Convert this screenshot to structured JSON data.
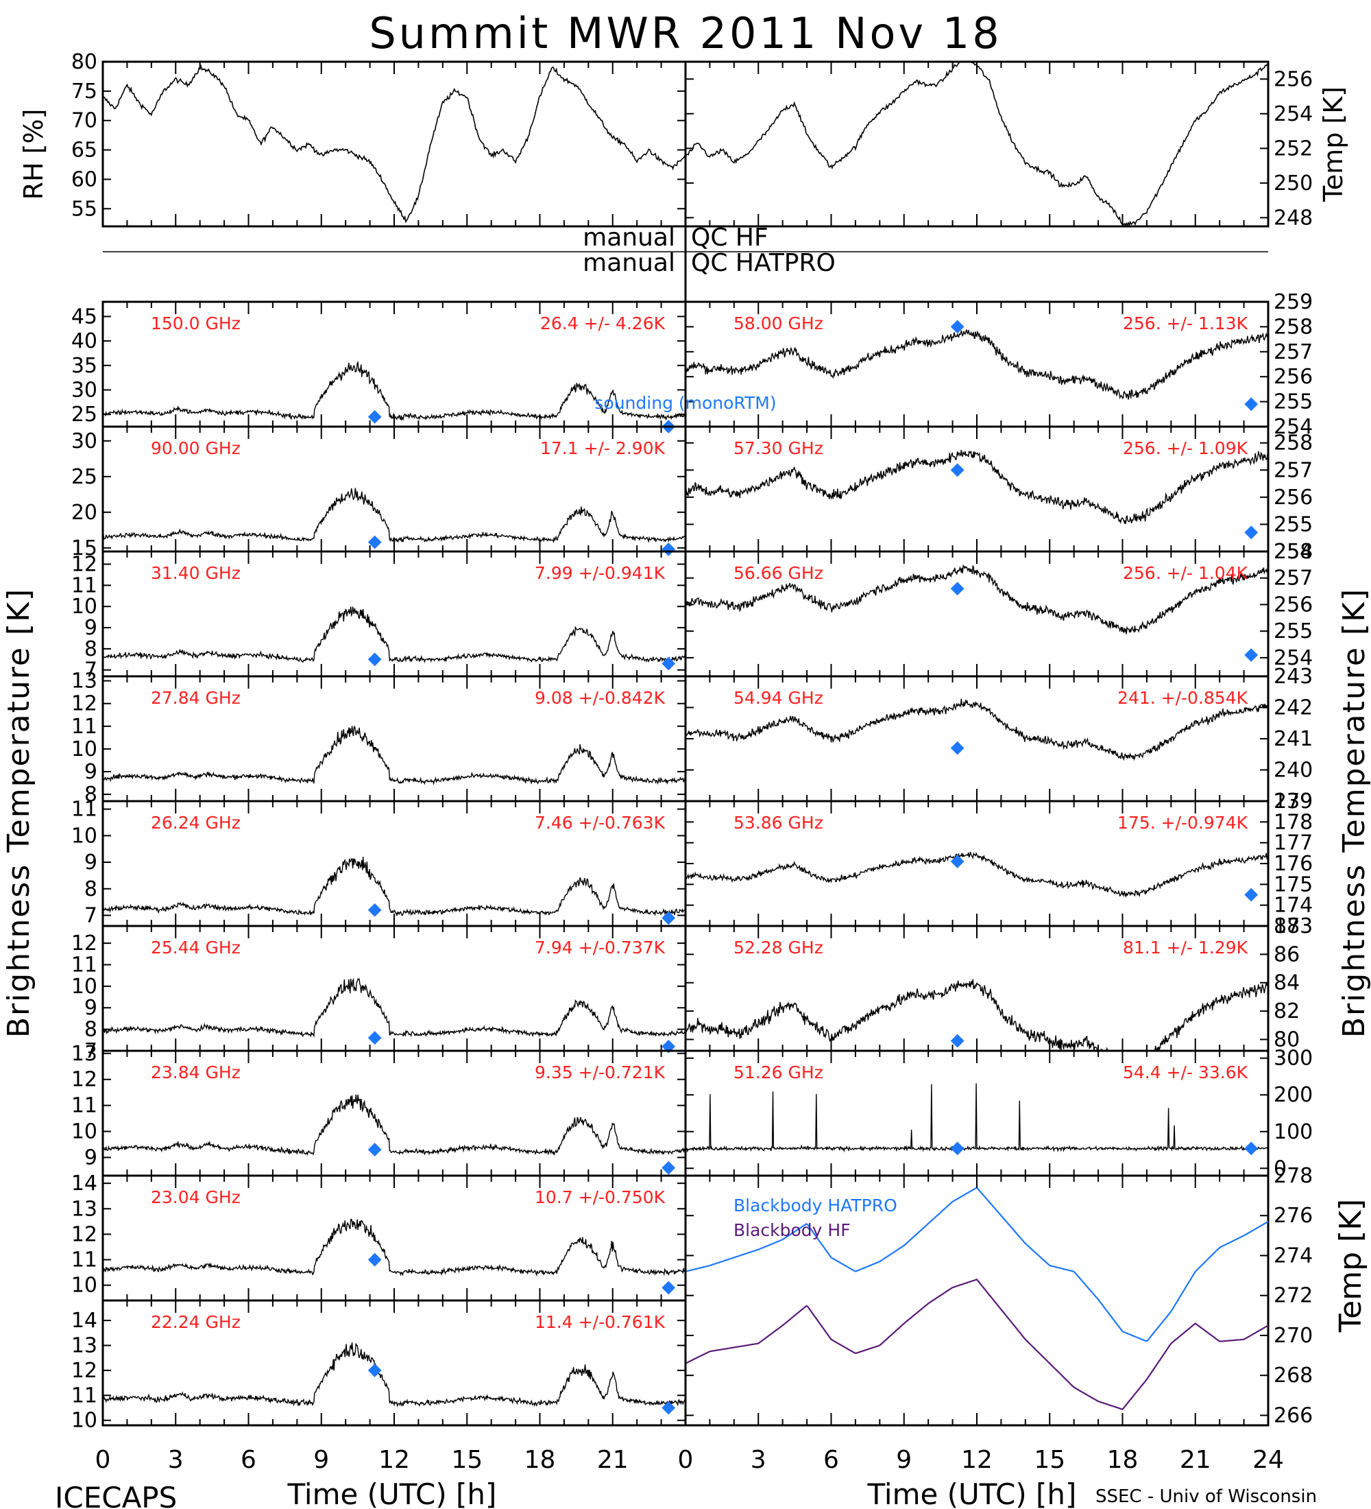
{
  "title": "Summit MWR 2011 Nov 18",
  "footer_left": "ICECAPS",
  "footer_right": "SSEC - Univ of Wisconsin",
  "qc_hf": {
    "left": "manual",
    "right": "QC HF"
  },
  "qc_hatpro": {
    "left": "manual",
    "right": "QC HATPRO"
  },
  "sounding_label": "sounding (monoRTM)",
  "left_ylabel": "Brightness Temperature [K]",
  "right_ylabel": "Brightness Temperature [K]",
  "xlabel_left": "Time (UTC) [h]",
  "xlabel_right": "Time (UTC) [h]",
  "rh_ylabel": "RH [%]",
  "temp_ylabel_top": "Temp [K]",
  "temp_ylabel_bb": "Temp [K]",
  "colors": {
    "line": "#000000",
    "annot": "#ff2020",
    "sounding": "#1e78ff",
    "hatpro": "#1e78ff",
    "hf": "#5a1a78"
  },
  "chart_data": {
    "type": "line",
    "x_left": {
      "label": "Time (UTC) [h]",
      "range": [
        0,
        24
      ],
      "ticks": [
        "0",
        "3",
        "6",
        "9",
        "12",
        "15",
        "18",
        "21"
      ]
    },
    "x_right": {
      "label": "Time (UTC) [h]",
      "range": [
        0,
        24
      ],
      "ticks": [
        "0",
        "3",
        "6",
        "9",
        "12",
        "15",
        "18",
        "21",
        "24"
      ]
    },
    "rh": {
      "ylabel": "RH [%]",
      "ylim": [
        52,
        80
      ],
      "ticks": [
        "55",
        "60",
        "65",
        "70",
        "75",
        "80"
      ],
      "t": [
        0,
        0.5,
        1,
        1.5,
        2,
        2.5,
        3,
        3.5,
        4,
        4.5,
        5,
        5.5,
        6,
        6.5,
        7,
        7.5,
        8,
        8.5,
        9,
        9.5,
        10,
        10.5,
        11,
        11.5,
        12,
        12.5,
        13,
        13.5,
        14,
        14.5,
        15,
        15.5,
        16,
        16.5,
        17,
        17.5,
        18,
        18.5,
        19,
        19.5,
        20,
        20.5,
        21,
        21.5,
        22,
        22.5,
        23,
        23.5,
        24
      ],
      "v": [
        74,
        72,
        76,
        73,
        71,
        75,
        77,
        76,
        79,
        78,
        76,
        71,
        70,
        66,
        69,
        67,
        65,
        66,
        64,
        65,
        65,
        64,
        63,
        60,
        56,
        53,
        57,
        66,
        73,
        75,
        74,
        67,
        64,
        65,
        63,
        67,
        74,
        79,
        77,
        76,
        73,
        70,
        67,
        66,
        63,
        65,
        63,
        62,
        64
      ]
    },
    "temp_top": {
      "ylabel": "Temp [K]",
      "ylim": [
        247.5,
        257
      ],
      "ticks": [
        "248",
        "250",
        "252",
        "254",
        "256"
      ],
      "t": [
        0,
        0.5,
        1,
        1.5,
        2,
        2.5,
        3,
        3.5,
        4,
        4.5,
        5,
        5.5,
        6,
        6.5,
        7,
        7.5,
        8,
        8.5,
        9,
        9.5,
        10,
        10.5,
        11,
        11.5,
        12,
        12.5,
        13,
        13.5,
        14,
        14.5,
        15,
        15.5,
        16,
        16.5,
        17,
        17.5,
        18,
        18.5,
        19,
        19.5,
        20,
        20.5,
        21,
        21.5,
        22,
        22.5,
        23,
        23.5,
        24
      ],
      "v": [
        251.5,
        252.3,
        251.5,
        251.9,
        251.2,
        251.6,
        252.4,
        253.2,
        254.2,
        254.6,
        252.8,
        251.8,
        250.9,
        251.5,
        252.1,
        253.4,
        254.1,
        254.6,
        255.3,
        255.9,
        255.6,
        255.8,
        256.6,
        257.2,
        256.8,
        255.9,
        253.8,
        252.3,
        251.2,
        250.8,
        250.6,
        249.8,
        249.9,
        250.4,
        249.2,
        248.7,
        247.6,
        247.7,
        248.4,
        249.6,
        251.0,
        252.3,
        253.6,
        254.2,
        255.2,
        255.6,
        255.9,
        256.3,
        256.9
      ]
    },
    "left_channels": [
      {
        "freq": "150.0 GHz",
        "stat": "26.4 +/-  4.26K",
        "ylim": [
          22.5,
          48
        ],
        "ticks": [
          "25",
          "30",
          "35",
          "40",
          "45"
        ],
        "base": 25,
        "amp": 10,
        "sounding": [
          [
            11.2,
            24.5
          ],
          [
            23.3,
            22.5
          ]
        ]
      },
      {
        "freq": "90.00 GHz",
        "stat": "17.1 +/-  2.90K",
        "ylim": [
          14.5,
          32
        ],
        "ticks": [
          "15",
          "20",
          "25",
          "30"
        ],
        "base": 16.5,
        "amp": 6.5,
        "sounding": [
          [
            11.2,
            15.8
          ],
          [
            23.3,
            14.8
          ]
        ]
      },
      {
        "freq": "31.40 GHz",
        "stat": "7.99 +/-0.941K",
        "ylim": [
          6.7,
          12.6
        ],
        "ticks": [
          "7",
          "8",
          "9",
          "10",
          "11",
          "12"
        ],
        "base": 7.6,
        "amp": 2.3,
        "sounding": [
          [
            11.2,
            7.5
          ],
          [
            23.3,
            7.3
          ]
        ]
      },
      {
        "freq": "27.84 GHz",
        "stat": "9.08 +/-0.842K",
        "ylim": [
          7.7,
          13.2
        ],
        "ticks": [
          "8",
          "9",
          "10",
          "11",
          "12",
          "13"
        ],
        "base": 8.7,
        "amp": 2.2,
        "sounding": []
      },
      {
        "freq": "26.24 GHz",
        "stat": "7.46 +/-0.763K",
        "ylim": [
          6.6,
          11.3
        ],
        "ticks": [
          "7",
          "8",
          "9",
          "10",
          "11"
        ],
        "base": 7.2,
        "amp": 1.9,
        "sounding": [
          [
            11.2,
            7.2
          ],
          [
            23.3,
            6.9
          ]
        ]
      },
      {
        "freq": "25.44 GHz",
        "stat": "7.94 +/-0.737K",
        "ylim": [
          7.0,
          12.8
        ],
        "ticks": [
          "7",
          "8",
          "9",
          "10",
          "11",
          "12"
        ],
        "base": 7.9,
        "amp": 2.3,
        "sounding": [
          [
            11.2,
            7.6
          ],
          [
            23.3,
            7.2
          ]
        ]
      },
      {
        "freq": "23.84 GHz",
        "stat": "9.35 +/-0.721K",
        "ylim": [
          8.3,
          13.1
        ],
        "ticks": [
          "9",
          "10",
          "11",
          "12",
          "13"
        ],
        "base": 9.3,
        "amp": 2.0,
        "sounding": [
          [
            11.2,
            9.3
          ],
          [
            23.3,
            8.6
          ]
        ]
      },
      {
        "freq": "23.04 GHz",
        "stat": "10.7 +/-0.750K",
        "ylim": [
          9.4,
          14.3
        ],
        "ticks": [
          "10",
          "11",
          "12",
          "13",
          "14"
        ],
        "base": 10.6,
        "amp": 2.0,
        "sounding": [
          [
            11.2,
            11.0
          ],
          [
            23.3,
            9.9
          ]
        ]
      },
      {
        "freq": "22.24 GHz",
        "stat": "11.4 +/-0.761K",
        "ylim": [
          9.8,
          14.8
        ],
        "ticks": [
          "10",
          "11",
          "12",
          "13",
          "14"
        ],
        "base": 10.8,
        "amp": 2.2,
        "sounding": [
          [
            11.2,
            12.0
          ],
          [
            23.3,
            10.5
          ]
        ]
      }
    ],
    "right_channels": [
      {
        "freq": "58.00 GHz",
        "stat": "256. +/- 1.13K",
        "ylim": [
          254,
          259
        ],
        "ticks": [
          "254",
          "255",
          "256",
          "257",
          "258",
          "259"
        ],
        "base": 256.4,
        "amp": 1.3,
        "sounding": [
          [
            11.2,
            258.0
          ],
          [
            23.3,
            254.9
          ]
        ]
      },
      {
        "freq": "57.30 GHz",
        "stat": "256. +/- 1.09K",
        "ylim": [
          254,
          258.6
        ],
        "ticks": [
          "254",
          "255",
          "256",
          "257",
          "258"
        ],
        "base": 256.3,
        "amp": 1.3,
        "sounding": [
          [
            11.2,
            257.0
          ],
          [
            23.3,
            254.7
          ]
        ]
      },
      {
        "freq": "56.66 GHz",
        "stat": "256. +/- 1.04K",
        "ylim": [
          253.3,
          258
        ],
        "ticks": [
          "254",
          "255",
          "256",
          "257",
          "258"
        ],
        "base": 256.1,
        "amp": 1.2,
        "sounding": [
          [
            11.2,
            256.6
          ],
          [
            23.3,
            254.1
          ]
        ]
      },
      {
        "freq": "54.94 GHz",
        "stat": "241. +/-0.854K",
        "ylim": [
          239,
          243
        ],
        "ticks": [
          "239",
          "240",
          "241",
          "242",
          "243"
        ],
        "base": 241.2,
        "amp": 0.9,
        "sounding": [
          [
            11.2,
            240.7
          ]
        ]
      },
      {
        "freq": "53.86 GHz",
        "stat": "175. +/-0.974K",
        "ylim": [
          173,
          179
        ],
        "ticks": [
          "173",
          "174",
          "175",
          "176",
          "177",
          "178",
          "179"
        ],
        "base": 175.4,
        "amp": 1.0,
        "sounding": [
          [
            11.2,
            176.1
          ],
          [
            23.3,
            174.5
          ]
        ]
      },
      {
        "freq": "52.28 GHz",
        "stat": "81.1 +/- 1.29K",
        "ylim": [
          79.2,
          88
        ],
        "ticks": [
          "80",
          "82",
          "84",
          "86",
          "88"
        ],
        "base": 80.9,
        "amp": 3.0,
        "sounding": [
          [
            11.2,
            79.9
          ]
        ]
      },
      {
        "freq": "51.26 GHz",
        "stat": "54.4 +/- 33.6K",
        "ylim": [
          -20,
          320
        ],
        "ticks": [
          "0",
          "100",
          "200",
          "300"
        ],
        "base": 54,
        "amp": 0,
        "sounding": [
          [
            11.2,
            54
          ],
          [
            23.3,
            54
          ]
        ]
      }
    ],
    "blackbody": {
      "ylim": [
        265.5,
        278
      ],
      "ticks": [
        "266",
        "268",
        "270",
        "272",
        "274",
        "276",
        "278"
      ],
      "series": [
        {
          "name": "Blackbody HATPRO",
          "t": [
            0,
            1,
            2,
            3,
            4,
            5,
            6,
            7,
            8,
            9,
            10,
            11,
            12,
            13,
            14,
            15,
            16,
            17,
            18,
            19,
            20,
            21,
            22,
            23,
            24
          ],
          "v": [
            273.2,
            273.5,
            273.9,
            274.3,
            274.8,
            275.6,
            273.9,
            273.2,
            273.7,
            274.5,
            275.6,
            276.7,
            277.4,
            276.0,
            274.6,
            273.5,
            273.2,
            271.8,
            270.2,
            269.7,
            271.2,
            273.2,
            274.4,
            275.0,
            275.7
          ]
        },
        {
          "name": "Blackbody HF",
          "t": [
            0,
            1,
            2,
            3,
            4,
            5,
            6,
            7,
            8,
            9,
            10,
            11,
            12,
            13,
            14,
            15,
            16,
            17,
            18,
            19,
            20,
            21,
            22,
            23,
            24
          ],
          "v": [
            268.6,
            269.2,
            269.4,
            269.6,
            270.5,
            271.5,
            269.8,
            269.1,
            269.5,
            270.6,
            271.6,
            272.4,
            272.8,
            271.3,
            269.8,
            268.6,
            267.4,
            266.7,
            266.3,
            267.8,
            269.6,
            270.6,
            269.7,
            269.8,
            270.5
          ]
        }
      ]
    }
  }
}
